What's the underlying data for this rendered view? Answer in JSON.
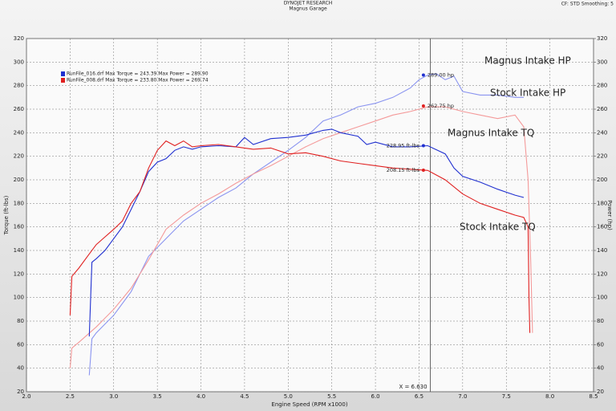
{
  "chart_data": {
    "type": "line",
    "title": "DYNOJET RESEARCH",
    "subtitle": "Magnus Garage",
    "corner_note": "CF: STD  Smoothing: 5",
    "x_label": "Engine Speed (RPM x1000)",
    "y_label": "Torque (ft-lbs)",
    "y2_label": "Power (hp)",
    "legend_lines": [
      {
        "text": "RunFile_016.drf Max Torque = 243.39 Max Power = 289.90",
        "color": "#2030d0"
      },
      {
        "text": "RunFile_008.drf Max Torque = 233.80 Max Power = 269.74",
        "color": "#e02020"
      }
    ],
    "xlim": [
      2.0,
      8.5
    ],
    "xticks": [
      {
        "value": 2,
        "label": "2.0"
      },
      {
        "value": 2.5,
        "label": "2.5"
      },
      {
        "value": 3,
        "label": "3.0"
      },
      {
        "value": 3.5,
        "label": "3.5"
      },
      {
        "value": 4,
        "label": "4.0"
      },
      {
        "value": 4.5,
        "label": "4.5"
      },
      {
        "value": 5,
        "label": "5.0"
      },
      {
        "value": 5.5,
        "label": "5.5"
      },
      {
        "value": 6,
        "label": "6.0"
      },
      {
        "value": 6.5,
        "label": "6.5"
      },
      {
        "value": 7,
        "label": "7.0"
      },
      {
        "value": 7.5,
        "label": "7.5"
      },
      {
        "value": 8,
        "label": "8.0"
      },
      {
        "value": 8.5,
        "label": "8.5"
      }
    ],
    "ylim": [
      20,
      320
    ],
    "yticks": [
      20,
      40,
      60,
      80,
      100,
      120,
      140,
      160,
      180,
      200,
      220,
      240,
      260,
      280,
      300,
      320
    ],
    "y2lim": [
      20,
      320
    ],
    "y2ticks": [
      20,
      40,
      60,
      80,
      100,
      120,
      140,
      160,
      180,
      200,
      220,
      240,
      260,
      280,
      300,
      320
    ],
    "grid": true,
    "cursor": {
      "value": 6.63,
      "label": "X = 6.630"
    },
    "series": [
      {
        "name": "Magnus Intake HP",
        "color": "#8a94f0",
        "axis": "y2",
        "x": [
          2.72,
          2.75,
          2.8,
          3.0,
          3.2,
          3.4,
          3.6,
          3.8,
          4.0,
          4.2,
          4.4,
          4.6,
          4.8,
          5.0,
          5.2,
          5.4,
          5.6,
          5.8,
          6.0,
          6.2,
          6.4,
          6.5,
          6.6,
          6.7,
          6.8,
          6.9,
          7.0,
          7.2,
          7.4,
          7.6,
          7.7
        ],
        "values": [
          34,
          65,
          70,
          85,
          105,
          135,
          150,
          165,
          175,
          185,
          193,
          205,
          215,
          225,
          236,
          250,
          255,
          262,
          265,
          270,
          278,
          285,
          289,
          290,
          285,
          288,
          275,
          272,
          272,
          270,
          270
        ]
      },
      {
        "name": "Stock Intake HP",
        "color": "#f49a9a",
        "axis": "y2",
        "x": [
          2.5,
          2.52,
          2.6,
          2.8,
          3.0,
          3.2,
          3.4,
          3.6,
          3.8,
          4.0,
          4.2,
          4.4,
          4.6,
          4.8,
          5.0,
          5.2,
          5.4,
          5.6,
          5.8,
          6.0,
          6.2,
          6.4,
          6.6,
          6.8,
          7.0,
          7.2,
          7.4,
          7.6,
          7.7,
          7.75,
          7.78,
          7.8
        ],
        "values": [
          40,
          57,
          62,
          75,
          90,
          108,
          132,
          158,
          170,
          180,
          188,
          197,
          205,
          212,
          220,
          228,
          235,
          240,
          245,
          250,
          255,
          258,
          262,
          262,
          258,
          255,
          252,
          255,
          245,
          200,
          130,
          70
        ]
      },
      {
        "name": "Magnus Intake TQ",
        "color": "#2030d0",
        "axis": "y",
        "x": [
          2.72,
          2.75,
          2.8,
          2.9,
          3.0,
          3.1,
          3.2,
          3.3,
          3.4,
          3.5,
          3.6,
          3.7,
          3.8,
          3.9,
          4.0,
          4.2,
          4.4,
          4.5,
          4.6,
          4.8,
          5.0,
          5.2,
          5.4,
          5.5,
          5.6,
          5.8,
          5.9,
          6.0,
          6.2,
          6.4,
          6.6,
          6.8,
          6.9,
          7.0,
          7.2,
          7.4,
          7.6,
          7.7
        ],
        "values": [
          67,
          130,
          133,
          140,
          150,
          160,
          175,
          190,
          207,
          215,
          218,
          225,
          228,
          226,
          228,
          229,
          228,
          236,
          230,
          235,
          236,
          238,
          242,
          243,
          240,
          237,
          230,
          232,
          228,
          228,
          229,
          222,
          210,
          203,
          198,
          192,
          187,
          185
        ]
      },
      {
        "name": "Stock Intake TQ",
        "color": "#e02020",
        "axis": "y",
        "x": [
          2.5,
          2.52,
          2.6,
          2.7,
          2.8,
          3.0,
          3.1,
          3.2,
          3.3,
          3.4,
          3.5,
          3.6,
          3.7,
          3.8,
          3.9,
          4.0,
          4.2,
          4.4,
          4.6,
          4.8,
          5.0,
          5.2,
          5.4,
          5.6,
          5.8,
          6.0,
          6.2,
          6.4,
          6.6,
          6.8,
          7.0,
          7.2,
          7.4,
          7.6,
          7.7,
          7.75,
          7.76,
          7.77
        ],
        "values": [
          85,
          118,
          125,
          135,
          145,
          158,
          165,
          180,
          190,
          210,
          225,
          233,
          229,
          233,
          228,
          229,
          230,
          228,
          226,
          227,
          222,
          223,
          220,
          216,
          214,
          212,
          210,
          209,
          208,
          200,
          188,
          180,
          175,
          170,
          168,
          160,
          100,
          70
        ]
      }
    ],
    "annotations": [
      {
        "text": "289.00 hp",
        "x": 6.55,
        "y": 289,
        "axis": "y2",
        "color": "#2030d0"
      },
      {
        "text": "262.75 hp",
        "x": 6.55,
        "y": 262.75,
        "axis": "y2",
        "color": "#e02020"
      },
      {
        "text": "228.95 ft-lbs",
        "x": 6.55,
        "y": 228.95,
        "axis": "y",
        "color": "#2030d0"
      },
      {
        "text": "208.15 ft-lbs",
        "x": 6.55,
        "y": 208.15,
        "axis": "y",
        "color": "#e02020"
      }
    ]
  }
}
